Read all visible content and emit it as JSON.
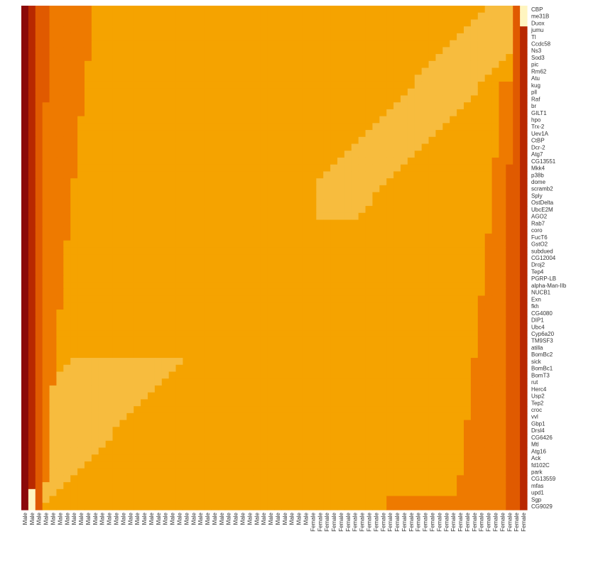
{
  "chart_data": {
    "type": "heatmap",
    "title": "",
    "xlabel": "",
    "ylabel": "",
    "rows": [
      "CBP",
      "me31B",
      "Duox",
      "jumu",
      "Tl",
      "Ccdc58",
      "Ns3",
      "Sod3",
      "pic",
      "Rm62",
      "Atu",
      "kug",
      "pll",
      "Raf",
      "br",
      "GILT1",
      "hpo",
      "Trx-2",
      "Uev1A",
      "CtBP",
      "Dcr-2",
      "Atg7",
      "CG13551",
      "Mkk4",
      "p38b",
      "dome",
      "scramb2",
      "Sply",
      "OstDelta",
      "UbcE2M",
      "AGO2",
      "Rab7",
      "coro",
      "FucT6",
      "GstO2",
      "subdued",
      "CG12004",
      "Droj2",
      "Tep4",
      "PGRP-LB",
      "alpha-Man-IIb",
      "NUCB1",
      "Exn",
      "fkh",
      "CG4080",
      "DIP1",
      "Ubc4",
      "Cyp6a20",
      "TM9SF3",
      "atilla",
      "BomBc2",
      "sick",
      "BomBc1",
      "BomT3",
      "rut",
      "Herc4",
      "Usp2",
      "Tep2",
      "croc",
      "vvl",
      "Gbp1",
      "Drsl4",
      "CG6426",
      "Mtl",
      "Atg16",
      "Ack",
      "fd102C",
      "park",
      "CG13559",
      "mfas",
      "upd1",
      "Sgp",
      "CG9029"
    ],
    "columns": [
      "Male",
      "Male",
      "Male",
      "Male",
      "Male",
      "Male",
      "Male",
      "Male",
      "Male",
      "Male",
      "Male",
      "Male",
      "Male",
      "Male",
      "Male",
      "Male",
      "Male",
      "Male",
      "Male",
      "Male",
      "Male",
      "Male",
      "Male",
      "Male",
      "Male",
      "Male",
      "Male",
      "Male",
      "Male",
      "Male",
      "Male",
      "Male",
      "Male",
      "Male",
      "Male",
      "Male",
      "Male",
      "Male",
      "Male",
      "Male",
      "Male",
      "Female",
      "Female",
      "Female",
      "Female",
      "Female",
      "Female",
      "Female",
      "Female",
      "Female",
      "Female",
      "Female",
      "Female",
      "Female",
      "Female",
      "Female",
      "Female",
      "Female",
      "Female",
      "Female",
      "Female",
      "Female",
      "Female",
      "Female",
      "Female",
      "Female",
      "Female",
      "Female",
      "Female",
      "Female",
      "Female",
      "Female"
    ],
    "color_levels": [
      "#FFF5C0",
      "#F7BC3E",
      "#F5A300",
      "#EE7A00",
      "#E05A00",
      "#B82800",
      "#8B0A0A"
    ],
    "legend": "none"
  }
}
